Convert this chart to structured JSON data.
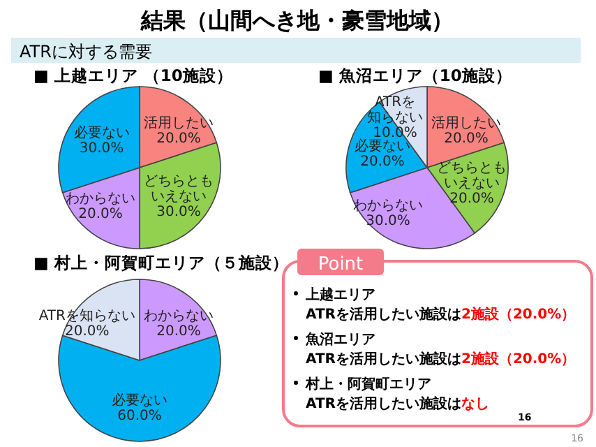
{
  "chart_data": [
    {
      "type": "other",
      "title": "結果（山間へき地・豪雪地域）",
      "subtitle": "ATRに対する需要"
    },
    {
      "type": "pie",
      "title": "■ 上越エリア （10施設）",
      "categories": [
        "活用したい",
        "どちらともいえない",
        "わからない",
        "必要ない"
      ],
      "values": [
        20,
        30,
        20,
        30
      ],
      "value_labels": [
        "20.0%",
        "30.0%",
        "20.0%",
        "30.0%"
      ],
      "colors": [
        "#f8837f",
        "#92d050",
        "#cc99ff",
        "#00b0f0"
      ]
    },
    {
      "type": "pie",
      "title": "■ 魚沼エリア（10施設）",
      "categories": [
        "活用したい",
        "どちらともいえない",
        "わからない",
        "必要ない",
        "ATRを知らない"
      ],
      "values": [
        20,
        20,
        30,
        20,
        10
      ],
      "value_labels": [
        "20.0%",
        "20.0%",
        "30.0%",
        "20.0%",
        "10.0%"
      ],
      "colors": [
        "#f8837f",
        "#92d050",
        "#cc99ff",
        "#00b0f0",
        "#dae3f3"
      ]
    },
    {
      "type": "pie",
      "title": "■ 村上・阿賀町エリア（５施設）",
      "categories": [
        "わからない",
        "必要ない",
        "ATRを知らない"
      ],
      "values": [
        20,
        60,
        20
      ],
      "value_labels": [
        "20.0%",
        "60.0%",
        "20.0%"
      ],
      "colors": [
        "#cc99ff",
        "#00b0f0",
        "#dae3f3"
      ]
    },
    {
      "type": "other",
      "title": "Point",
      "annotations": [
        "上越エリア",
        "ATRを活用したい施設は",
        "2施設",
        "（20.0%）",
        "魚沼エリア",
        "ATRを活用したい施設は",
        "2施設",
        "（20.0%）",
        "村上・阿賀町エリア",
        "ATRを活用したい施設は",
        "なし",
        "16",
        "16"
      ]
    }
  ]
}
